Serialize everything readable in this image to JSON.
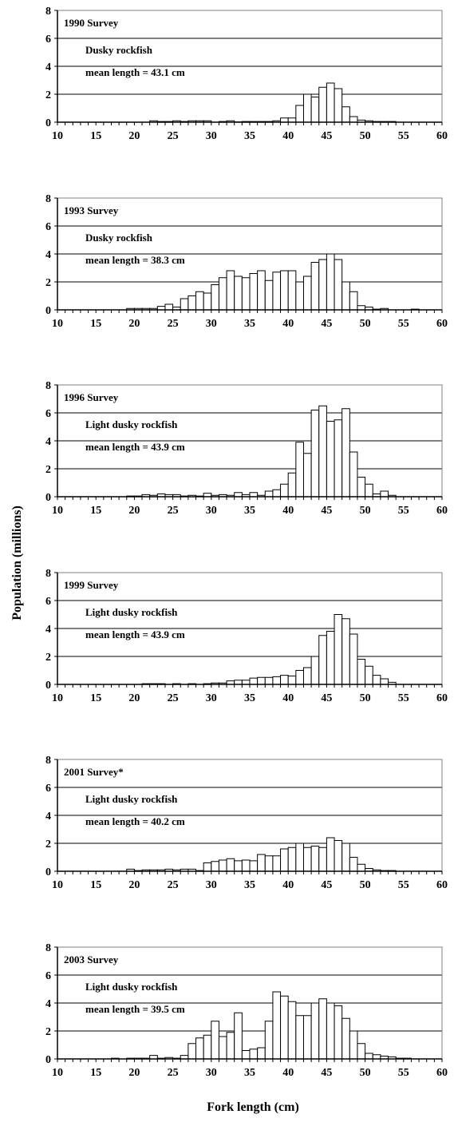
{
  "y_axis_title": "Population (millions)",
  "x_axis_title": "Fork length (cm)",
  "chart_data": [
    {
      "type": "bar",
      "title": "1990 Survey",
      "species": "Dusky rockfish",
      "mean_length": "mean length = 43.1 cm",
      "xlabel": "Fork length (cm)",
      "ylabel": "Population (millions)",
      "xlim": [
        10,
        60
      ],
      "ylim": [
        0,
        8
      ],
      "xticks": [
        10,
        15,
        20,
        25,
        30,
        35,
        40,
        45,
        50,
        55,
        60
      ],
      "yticks": [
        0,
        2,
        4,
        6,
        8
      ],
      "grid": "horizontal",
      "x": [
        22,
        23,
        24,
        25,
        26,
        27,
        28,
        29,
        30,
        31,
        32,
        33,
        34,
        35,
        36,
        37,
        38,
        39,
        40,
        41,
        42,
        43,
        44,
        45,
        46,
        47,
        48,
        49,
        50,
        51,
        52,
        53
      ],
      "values": [
        0.1,
        0.05,
        0.05,
        0.1,
        0.05,
        0.1,
        0.1,
        0.1,
        0.0,
        0.05,
        0.1,
        0.02,
        0.05,
        0.05,
        0.05,
        0.05,
        0.1,
        0.3,
        0.3,
        1.2,
        2.0,
        1.8,
        2.5,
        2.8,
        2.4,
        1.1,
        0.4,
        0.15,
        0.1,
        0.05,
        0.05,
        0.05
      ]
    },
    {
      "type": "bar",
      "title": "1993 Survey",
      "species": "Dusky rockfish",
      "mean_length": "mean length = 38.3 cm",
      "xlabel": "Fork length (cm)",
      "ylabel": "Population (millions)",
      "xlim": [
        10,
        60
      ],
      "ylim": [
        0,
        8
      ],
      "xticks": [
        10,
        15,
        20,
        25,
        30,
        35,
        40,
        45,
        50,
        55,
        60
      ],
      "yticks": [
        0,
        2,
        4,
        6,
        8
      ],
      "grid": "horizontal",
      "x": [
        19,
        20,
        21,
        22,
        23,
        24,
        25,
        26,
        27,
        28,
        29,
        30,
        31,
        32,
        33,
        34,
        35,
        36,
        37,
        38,
        39,
        40,
        41,
        42,
        43,
        44,
        45,
        46,
        47,
        48,
        49,
        50,
        51,
        52,
        53,
        56
      ],
      "values": [
        0.1,
        0.1,
        0.1,
        0.1,
        0.25,
        0.4,
        0.2,
        0.8,
        1.0,
        1.3,
        1.2,
        1.8,
        2.3,
        2.8,
        2.4,
        2.3,
        2.6,
        2.8,
        2.1,
        2.7,
        2.8,
        2.8,
        2.0,
        2.4,
        3.4,
        3.6,
        4.0,
        3.6,
        2.0,
        1.3,
        0.3,
        0.2,
        0.05,
        0.1,
        0.0,
        0.05
      ]
    },
    {
      "type": "bar",
      "title": "1996 Survey",
      "species": "Light dusky rockfish",
      "mean_length": "mean length = 43.9 cm",
      "xlabel": "Fork length (cm)",
      "ylabel": "Population (millions)",
      "xlim": [
        10,
        60
      ],
      "ylim": [
        0,
        8
      ],
      "xticks": [
        10,
        15,
        20,
        25,
        30,
        35,
        40,
        45,
        50,
        55,
        60
      ],
      "yticks": [
        0,
        2,
        4,
        6,
        8
      ],
      "grid": "horizontal",
      "x": [
        19,
        20,
        21,
        22,
        23,
        24,
        25,
        26,
        27,
        28,
        29,
        30,
        31,
        32,
        33,
        34,
        35,
        36,
        37,
        38,
        39,
        40,
        41,
        42,
        43,
        44,
        45,
        46,
        47,
        48,
        49,
        50,
        51,
        52,
        53
      ],
      "values": [
        0.05,
        0.05,
        0.15,
        0.1,
        0.2,
        0.15,
        0.15,
        0.05,
        0.1,
        0.05,
        0.25,
        0.1,
        0.15,
        0.1,
        0.3,
        0.15,
        0.3,
        0.1,
        0.4,
        0.5,
        0.9,
        1.7,
        3.9,
        3.1,
        6.2,
        6.5,
        5.4,
        5.5,
        6.3,
        3.2,
        1.4,
        0.9,
        0.2,
        0.4,
        0.1
      ]
    },
    {
      "type": "bar",
      "title": "1999 Survey",
      "species": "Light dusky rockfish",
      "mean_length": "mean length = 43.9 cm",
      "xlabel": "Fork length (cm)",
      "ylabel": "Population (millions)",
      "xlim": [
        10,
        60
      ],
      "ylim": [
        0,
        8
      ],
      "xticks": [
        10,
        15,
        20,
        25,
        30,
        35,
        40,
        45,
        50,
        55,
        60
      ],
      "yticks": [
        0,
        2,
        4,
        6,
        8
      ],
      "grid": "horizontal",
      "x": [
        21,
        22,
        23,
        24,
        25,
        26,
        27,
        28,
        29,
        30,
        31,
        32,
        33,
        34,
        35,
        36,
        37,
        38,
        39,
        40,
        41,
        42,
        43,
        44,
        45,
        46,
        47,
        48,
        49,
        50,
        51,
        52,
        53
      ],
      "values": [
        0.05,
        0.05,
        0.05,
        0.0,
        0.05,
        0.0,
        0.05,
        0.0,
        0.05,
        0.1,
        0.1,
        0.25,
        0.3,
        0.3,
        0.45,
        0.5,
        0.5,
        0.55,
        0.65,
        0.6,
        1.0,
        1.2,
        2.0,
        3.5,
        3.8,
        5.0,
        4.7,
        3.6,
        1.8,
        1.3,
        0.65,
        0.4,
        0.15
      ]
    },
    {
      "type": "bar",
      "title": "2001 Survey*",
      "species": "Light dusky rockfish",
      "mean_length": "mean length = 40.2 cm",
      "xlabel": "Fork length (cm)",
      "ylabel": "Population (millions)",
      "xlim": [
        10,
        60
      ],
      "ylim": [
        0,
        8
      ],
      "xticks": [
        10,
        15,
        20,
        25,
        30,
        35,
        40,
        45,
        50,
        55,
        60
      ],
      "yticks": [
        0,
        2,
        4,
        6,
        8
      ],
      "grid": "horizontal",
      "x": [
        19,
        20,
        21,
        22,
        23,
        24,
        25,
        26,
        27,
        28,
        29,
        30,
        31,
        32,
        33,
        34,
        35,
        36,
        37,
        38,
        39,
        40,
        41,
        42,
        43,
        44,
        45,
        46,
        47,
        48,
        49,
        50,
        51,
        52,
        53
      ],
      "values": [
        0.15,
        0.05,
        0.1,
        0.1,
        0.1,
        0.15,
        0.1,
        0.15,
        0.15,
        0.05,
        0.6,
        0.7,
        0.8,
        0.9,
        0.75,
        0.8,
        0.75,
        1.2,
        1.1,
        1.1,
        1.6,
        1.7,
        2.0,
        1.7,
        1.8,
        1.7,
        2.4,
        2.2,
        2.0,
        1.0,
        0.5,
        0.2,
        0.1,
        0.05,
        0.05
      ]
    },
    {
      "type": "bar",
      "title": "2003 Survey",
      "species": "Light dusky rockfish",
      "mean_length": "mean length = 39.5 cm",
      "xlabel": "Fork length (cm)",
      "ylabel": "Population (millions)",
      "xlim": [
        10,
        60
      ],
      "ylim": [
        0,
        8
      ],
      "xticks": [
        10,
        15,
        20,
        25,
        30,
        35,
        40,
        45,
        50,
        55,
        60
      ],
      "yticks": [
        0,
        2,
        4,
        6,
        8
      ],
      "grid": "horizontal",
      "x": [
        17,
        19,
        20,
        21,
        22,
        23,
        24,
        25,
        26,
        27,
        28,
        29,
        30,
        31,
        32,
        33,
        34,
        35,
        36,
        37,
        38,
        39,
        40,
        41,
        42,
        43,
        44,
        45,
        46,
        47,
        48,
        49,
        50,
        51,
        52,
        53,
        54,
        55
      ],
      "values": [
        0.05,
        0.05,
        0.05,
        0.05,
        0.25,
        0.05,
        0.1,
        0.05,
        0.25,
        1.1,
        1.5,
        1.7,
        2.7,
        1.6,
        1.9,
        3.3,
        0.6,
        0.7,
        0.8,
        2.7,
        4.8,
        4.5,
        4.1,
        3.1,
        3.1,
        4.0,
        4.3,
        4.0,
        3.8,
        2.9,
        2.0,
        1.1,
        0.4,
        0.3,
        0.2,
        0.15,
        0.05,
        0.05
      ]
    }
  ]
}
